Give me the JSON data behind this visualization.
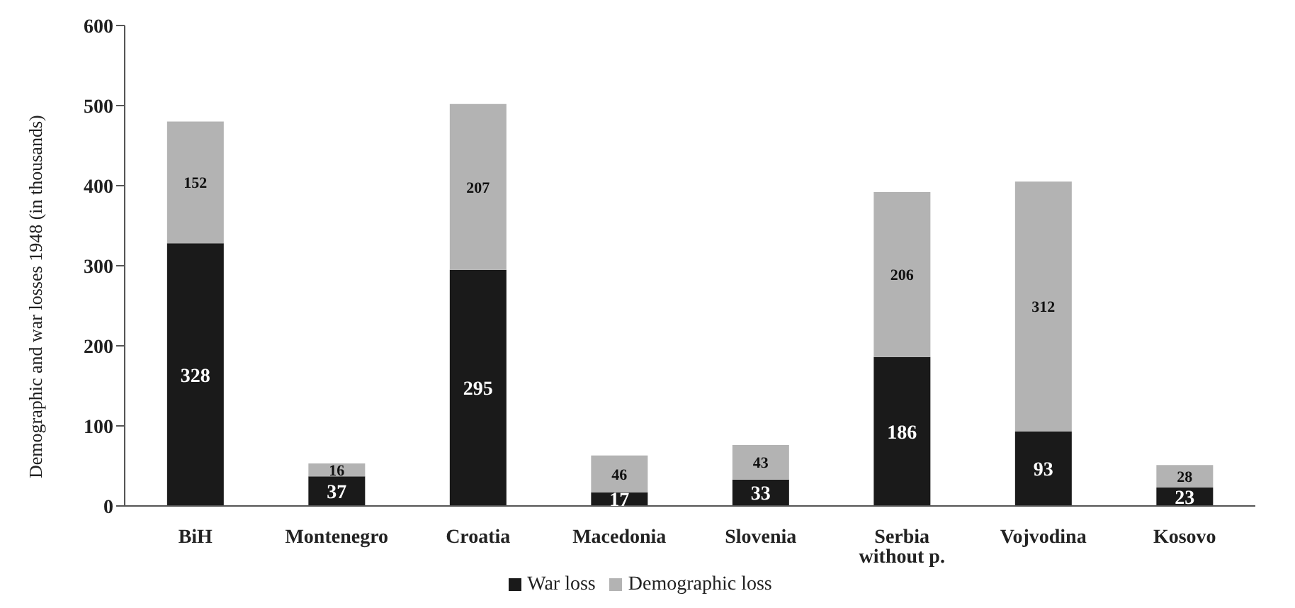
{
  "chart_data": {
    "type": "bar",
    "stacked": true,
    "ylabel": "Demographic and war losses 1948 (in thousands)",
    "categories": [
      "BiH",
      "Montenegro",
      "Croatia",
      "Macedonia",
      "Slovenia",
      "Serbia without p.",
      "Vojvodina",
      "Kosovo"
    ],
    "series": [
      {
        "name": "War loss",
        "color": "#1a1a1a",
        "values": [
          328,
          37,
          295,
          17,
          33,
          186,
          93,
          23
        ]
      },
      {
        "name": "Demographic loss",
        "color": "#b3b3b3",
        "values": [
          152,
          16,
          207,
          46,
          43,
          206,
          312,
          28
        ]
      }
    ],
    "ylim": [
      0,
      600
    ],
    "yticks": [
      0,
      100,
      200,
      300,
      400,
      500,
      600
    ],
    "data_labels": true,
    "legend": "bottom"
  }
}
